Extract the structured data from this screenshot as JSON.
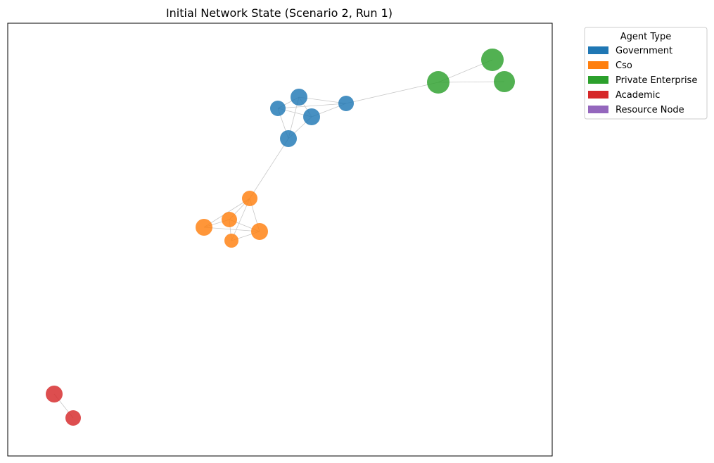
{
  "figure": {
    "title": "Initial Network State (Scenario 2, Run 1)"
  },
  "legend": {
    "title": "Agent Type",
    "items": [
      {
        "label": "Government",
        "color": "#1f77b4"
      },
      {
        "label": "Cso",
        "color": "#ff7f0e"
      },
      {
        "label": "Private Enterprise",
        "color": "#2ca02c"
      },
      {
        "label": "Academic",
        "color": "#d62728"
      },
      {
        "label": "Resource Node",
        "color": "#9467bd"
      }
    ]
  },
  "nodes": [
    {
      "id": "g1",
      "type": "Government"
    },
    {
      "id": "g2",
      "type": "Government"
    },
    {
      "id": "g3",
      "type": "Government"
    },
    {
      "id": "g4",
      "type": "Government"
    },
    {
      "id": "g5",
      "type": "Government"
    },
    {
      "id": "c1",
      "type": "Cso"
    },
    {
      "id": "c2",
      "type": "Cso"
    },
    {
      "id": "c3",
      "type": "Cso"
    },
    {
      "id": "c4",
      "type": "Cso"
    },
    {
      "id": "c5",
      "type": "Cso"
    },
    {
      "id": "p1",
      "type": "Private Enterprise"
    },
    {
      "id": "p2",
      "type": "Private Enterprise"
    },
    {
      "id": "p3",
      "type": "Private Enterprise"
    },
    {
      "id": "a1",
      "type": "Academic"
    },
    {
      "id": "a2",
      "type": "Academic"
    }
  ],
  "edges": [
    [
      "g1",
      "g2"
    ],
    [
      "g1",
      "g3"
    ],
    [
      "g1",
      "g4"
    ],
    [
      "g1",
      "g5"
    ],
    [
      "g2",
      "g3"
    ],
    [
      "g2",
      "g4"
    ],
    [
      "g2",
      "g5"
    ],
    [
      "g3",
      "g4"
    ],
    [
      "g3",
      "g5"
    ],
    [
      "g4",
      "p1"
    ],
    [
      "g5",
      "c1"
    ],
    [
      "c1",
      "c2"
    ],
    [
      "c1",
      "c3"
    ],
    [
      "c1",
      "c4"
    ],
    [
      "c1",
      "c5"
    ],
    [
      "c2",
      "c3"
    ],
    [
      "c2",
      "c4"
    ],
    [
      "c2",
      "c5"
    ],
    [
      "c3",
      "c4"
    ],
    [
      "c4",
      "c5"
    ],
    [
      "p1",
      "p2"
    ],
    [
      "p1",
      "p3"
    ],
    [
      "a1",
      "a2"
    ]
  ]
}
